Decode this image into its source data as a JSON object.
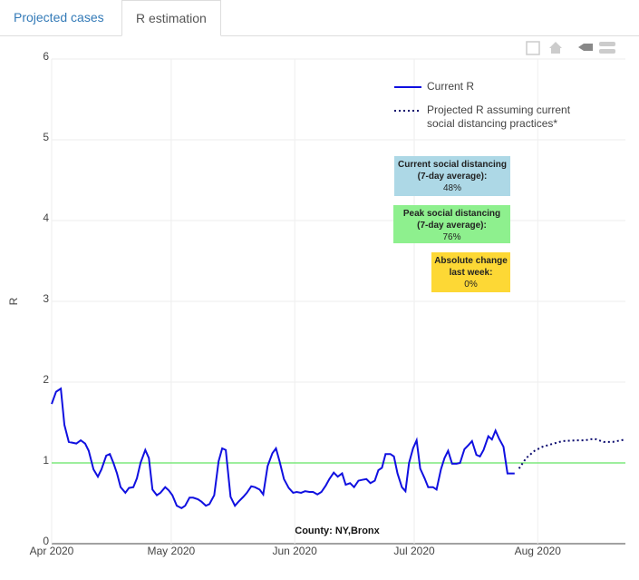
{
  "tabs": [
    {
      "label": "Projected cases",
      "active": false
    },
    {
      "label": "R estimation",
      "active": true
    }
  ],
  "chart_data": {
    "type": "line",
    "ylabel": "R",
    "xlim": [
      0,
      144
    ],
    "ylim": [
      0,
      6
    ],
    "xticks": [
      {
        "value": 0,
        "label": "Apr 2020"
      },
      {
        "value": 30,
        "label": "May 2020"
      },
      {
        "value": 61,
        "label": "Jun 2020"
      },
      {
        "value": 91,
        "label": "Jul 2020"
      },
      {
        "value": 122,
        "label": "Aug 2020"
      }
    ],
    "yticks": [
      0,
      1,
      2,
      3,
      4,
      5,
      6
    ],
    "grid": true,
    "reference_line": {
      "value": 1,
      "color": "#7de87d"
    },
    "series": [
      {
        "name": "Current R",
        "color": "#1010e0",
        "dash": "solid",
        "x": [
          0,
          1.1,
          2.3,
          3.2,
          4.3,
          6.2,
          7.3,
          8.4,
          9.3,
          10.5,
          11.6,
          12.5,
          13.7,
          14.6,
          15.5,
          16.4,
          17.3,
          18.5,
          19.4,
          20.5,
          21.4,
          22.3,
          23.5,
          24.4,
          25.3,
          26.4,
          27.3,
          28.5,
          29.4,
          30.3,
          31.4,
          32.6,
          33.5,
          34.6,
          35.5,
          36.7,
          37.6,
          38.7,
          39.6,
          40.8,
          41.9,
          42.8,
          43.7,
          44.9,
          46.0,
          46.9,
          48.1,
          49.0,
          50.1,
          51.0,
          52.2,
          53.1,
          54.2,
          55.4,
          56.3,
          57.2,
          58.3,
          59.5,
          60.6,
          61.5,
          62.6,
          63.6,
          64.7,
          65.6,
          66.7,
          67.7,
          68.8,
          69.7,
          70.8,
          71.8,
          72.9,
          73.8,
          74.9,
          75.9,
          77.0,
          77.9,
          79.0,
          80.0,
          81.1,
          82.0,
          82.9,
          83.8,
          85.0,
          85.9,
          86.8,
          87.9,
          88.8,
          89.7,
          90.7,
          91.6,
          92.5,
          93.6,
          94.5,
          95.7,
          96.6,
          97.7,
          98.6,
          99.5,
          100.5,
          101.6,
          102.5,
          103.6,
          104.6,
          105.5,
          106.6,
          107.5,
          108.4,
          109.6,
          110.5,
          111.4,
          112.3,
          113.4,
          114.4,
          116.2
        ],
        "values": [
          1.73,
          1.88,
          1.92,
          1.47,
          1.26,
          1.24,
          1.28,
          1.24,
          1.15,
          0.92,
          0.83,
          0.92,
          1.09,
          1.11,
          1.0,
          0.87,
          0.7,
          0.63,
          0.69,
          0.7,
          0.81,
          1.0,
          1.16,
          1.06,
          0.67,
          0.6,
          0.63,
          0.7,
          0.66,
          0.6,
          0.47,
          0.44,
          0.47,
          0.57,
          0.57,
          0.55,
          0.52,
          0.47,
          0.49,
          0.6,
          1.02,
          1.18,
          1.16,
          0.58,
          0.47,
          0.52,
          0.58,
          0.63,
          0.71,
          0.7,
          0.67,
          0.61,
          0.96,
          1.12,
          1.18,
          1.02,
          0.8,
          0.69,
          0.63,
          0.64,
          0.63,
          0.65,
          0.64,
          0.64,
          0.61,
          0.64,
          0.72,
          0.8,
          0.88,
          0.83,
          0.87,
          0.73,
          0.75,
          0.7,
          0.78,
          0.79,
          0.8,
          0.75,
          0.78,
          0.91,
          0.94,
          1.11,
          1.11,
          1.08,
          0.87,
          0.7,
          0.65,
          1.0,
          1.18,
          1.28,
          0.93,
          0.81,
          0.7,
          0.7,
          0.67,
          0.92,
          1.06,
          1.15,
          0.99,
          0.99,
          1.0,
          1.17,
          1.22,
          1.27,
          1.1,
          1.08,
          1.16,
          1.33,
          1.29,
          1.4,
          1.3,
          1.2,
          0.87,
          0.87
        ]
      },
      {
        "name": "Projected R assuming current social distancing practices*",
        "color": "#0a0a6e",
        "dash": "dot",
        "x": [
          117.3,
          119.1,
          121.2,
          123.2,
          126,
          128.2,
          131.7,
          133.9,
          136.2,
          138.5,
          140.8,
          144
        ],
        "values": [
          0.93,
          1.06,
          1.15,
          1.2,
          1.24,
          1.27,
          1.28,
          1.28,
          1.3,
          1.26,
          1.26,
          1.29
        ]
      }
    ],
    "annotations": [
      {
        "lines": [
          "Current social distancing",
          "(7-day average):",
          "48%"
        ],
        "color": "#add8e6"
      },
      {
        "lines": [
          "Peak social distancing",
          "(7-day average):",
          "76%"
        ],
        "color": "#8ef08e"
      },
      {
        "lines": [
          "Absolute change",
          "last week:",
          "0%"
        ],
        "color": "#fdd835"
      }
    ],
    "footnote": "County: NY,Bronx"
  }
}
